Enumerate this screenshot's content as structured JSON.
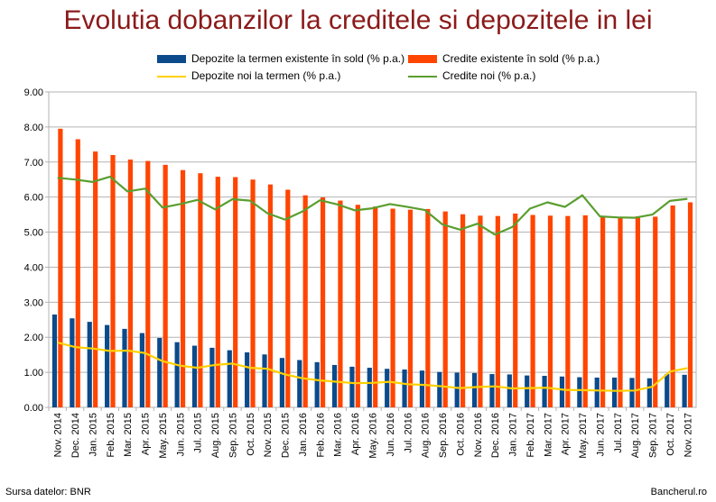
{
  "title": "Evolutia dobanzilor la creditele si depozitele in lei",
  "footer": {
    "source": "Sursa datelor: BNR",
    "brand": "Bancherul.ro"
  },
  "colors": {
    "deposits_stock": "#0b4a8b",
    "credits_stock": "#ff4500",
    "deposits_new": "#ffd000",
    "credits_new": "#5a9e2f",
    "title": "#8b1a1a"
  },
  "chart_data": {
    "type": "bar",
    "ylim": [
      0,
      9
    ],
    "yticks": [
      "0.00",
      "1.00",
      "2.00",
      "3.00",
      "4.00",
      "5.00",
      "6.00",
      "7.00",
      "8.00",
      "9.00"
    ],
    "grid": true,
    "legend_position": "top",
    "categories": [
      "Nov. 2014",
      "Dec. 2014",
      "Jan. 2015",
      "Feb. 2015",
      "Mar. 2015",
      "Apr. 2015",
      "May. 2015",
      "Jun. 2015",
      "Jul. 2015",
      "Aug. 2015",
      "Sep. 2015",
      "Oct. 2015",
      "Nov. 2015",
      "Dec. 2015",
      "Jan. 2016",
      "Feb. 2016",
      "Mar. 2016",
      "Apr. 2016",
      "May. 2016",
      "Jun. 2016",
      "Jul. 2016",
      "Aug. 2016",
      "Sep. 2016",
      "Oct. 2016",
      "Nov. 2016",
      "Dec. 2016",
      "Jan. 2017",
      "Feb. 2017",
      "Mar. 2017",
      "Apr. 2017",
      "May. 2017",
      "Jun. 2017",
      "Jul. 2017",
      "Aug. 2017",
      "Sep. 2017",
      "Oct. 2017",
      "Nov. 2017"
    ],
    "series": [
      {
        "name": "Depozite la termen existente în sold (% p.a.)",
        "kind": "bar",
        "values": [
          2.65,
          2.54,
          2.44,
          2.35,
          2.24,
          2.12,
          1.98,
          1.86,
          1.76,
          1.7,
          1.63,
          1.57,
          1.51,
          1.41,
          1.35,
          1.29,
          1.21,
          1.16,
          1.13,
          1.1,
          1.08,
          1.05,
          1.01,
          0.99,
          0.98,
          0.95,
          0.94,
          0.91,
          0.9,
          0.88,
          0.86,
          0.85,
          0.85,
          0.84,
          0.83,
          0.95,
          0.93
        ]
      },
      {
        "name": "Credite existente în sold (% p.a.)",
        "kind": "bar",
        "values": [
          7.95,
          7.65,
          7.3,
          7.2,
          7.07,
          7.03,
          6.92,
          6.77,
          6.68,
          6.58,
          6.57,
          6.5,
          6.36,
          6.21,
          6.05,
          5.99,
          5.9,
          5.78,
          5.73,
          5.67,
          5.64,
          5.66,
          5.59,
          5.51,
          5.47,
          5.46,
          5.53,
          5.49,
          5.47,
          5.46,
          5.48,
          5.46,
          5.41,
          5.45,
          5.44,
          5.76,
          5.85
        ]
      },
      {
        "name": "Depozite noi la termen (% p.a.)",
        "kind": "line",
        "values": [
          1.85,
          1.72,
          1.68,
          1.61,
          1.62,
          1.55,
          1.32,
          1.19,
          1.13,
          1.21,
          1.25,
          1.13,
          1.1,
          0.94,
          0.83,
          0.77,
          0.73,
          0.69,
          0.7,
          0.73,
          0.66,
          0.64,
          0.6,
          0.55,
          0.58,
          0.6,
          0.54,
          0.55,
          0.56,
          0.5,
          0.49,
          0.48,
          0.47,
          0.48,
          0.59,
          1.02,
          1.12
        ]
      },
      {
        "name": "Credite noi (% p.a.)",
        "kind": "line",
        "values": [
          6.55,
          6.5,
          6.43,
          6.58,
          6.16,
          6.24,
          5.7,
          5.8,
          5.92,
          5.65,
          5.94,
          5.9,
          5.54,
          5.36,
          5.59,
          5.91,
          5.79,
          5.62,
          5.68,
          5.8,
          5.72,
          5.63,
          5.22,
          5.07,
          5.24,
          4.93,
          5.15,
          5.67,
          5.85,
          5.72,
          6.05,
          5.45,
          5.42,
          5.41,
          5.5,
          5.89,
          5.95
        ]
      }
    ]
  }
}
